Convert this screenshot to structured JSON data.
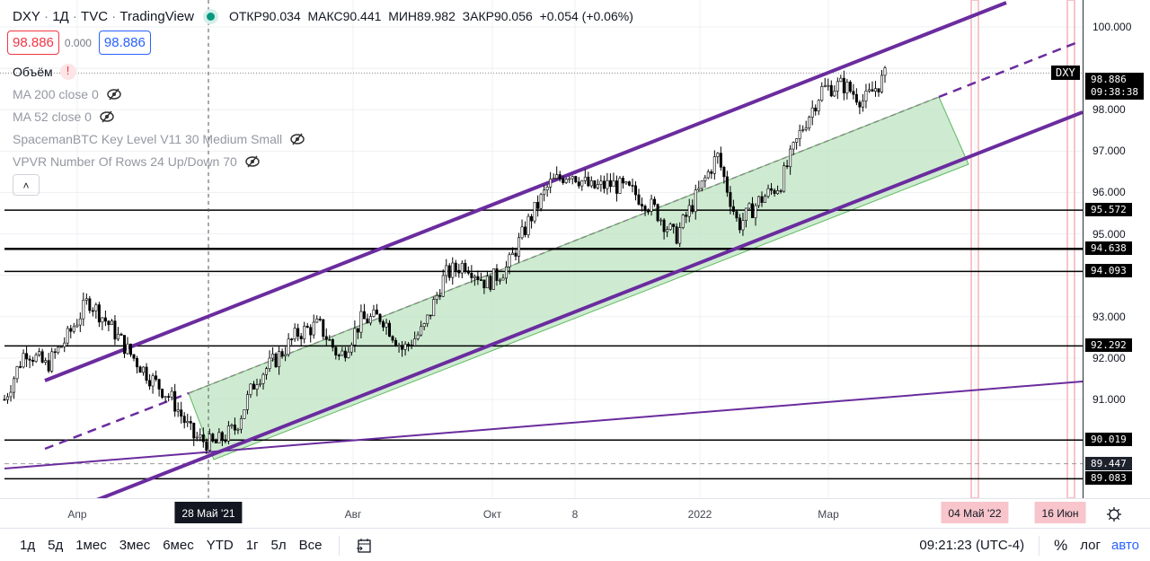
{
  "header": {
    "symbol": "DXY",
    "interval": "1Д",
    "exchange": "TVC",
    "source": "TradingView",
    "status_color": "#089981",
    "ohlc": {
      "open_label": "ОТКР",
      "open": "90.034",
      "high_label": "МАКС",
      "high": "90.441",
      "low_label": "МИН",
      "low": "89.982",
      "close_label": "ЗАКР",
      "close": "90.056",
      "change": "+0.054 (+0.06%)"
    },
    "bid": "98.886",
    "spread": "0.000",
    "ask": "98.886"
  },
  "indicators": [
    {
      "label": "Объём",
      "warning": "!"
    },
    {
      "label": "MA 200 close 0"
    },
    {
      "label": "MA 52 close 0"
    },
    {
      "label": "SpacemanBTC Key Level V11 30 Medium Small"
    },
    {
      "label": "VPVR Number Of Rows 24 Up/Down 70"
    }
  ],
  "price_axis": {
    "ticks": [
      "100.000",
      "98.000",
      "97.000",
      "96.000",
      "95.000",
      "93.000",
      "92.000",
      "91.000"
    ],
    "tick_values": [
      100,
      98,
      97,
      96,
      95,
      93,
      92,
      91
    ],
    "current": {
      "symbol": "DXY",
      "price": "98.886",
      "countdown": "09:38:38",
      "value": 98.886
    },
    "levels": [
      {
        "label": "95.572",
        "value": 95.572
      },
      {
        "label": "94.638",
        "value": 94.638
      },
      {
        "label": "94.093",
        "value": 94.093
      },
      {
        "label": "92.292",
        "value": 92.292
      },
      {
        "label": "90.019",
        "value": 90.019
      },
      {
        "label": "89.083",
        "value": 89.083
      }
    ],
    "dashed_level": {
      "label": "89.447",
      "value": 89.447
    }
  },
  "time_axis": {
    "labels": [
      "Апр",
      "Авг",
      "Окт",
      "8",
      "2022",
      "Мар"
    ],
    "crosshair": "28 Май '21",
    "markers": [
      "04 Май '22",
      "16 Июн"
    ]
  },
  "price_path": [
    91.0,
    92.2,
    91.8,
    92.5,
    93.4,
    92.8,
    92.1,
    91.5,
    91.0,
    90.1,
    89.9,
    90.3,
    91.5,
    92.0,
    92.6,
    92.8,
    92.0,
    92.9,
    93.0,
    92.2,
    92.7,
    94.0,
    94.3,
    93.8,
    94.2,
    95.3,
    96.2,
    96.5,
    96.1,
    96.2,
    96.0,
    95.6,
    94.9,
    95.9,
    96.9,
    95.2,
    95.8,
    96.2,
    97.5,
    98.5,
    98.6,
    98.2,
    98.8
  ],
  "colors": {
    "channel": "#6a2c9e",
    "fill": "#b9e3bf",
    "marker": "#f7c5cb",
    "down": "#000000"
  },
  "bottom": {
    "ranges": [
      "1д",
      "5д",
      "1мес",
      "3мес",
      "6мес",
      "YTD",
      "1г",
      "5л",
      "Все"
    ],
    "time": "09:21:23 (UTC-4)",
    "percent": "%",
    "log": "лог",
    "auto": "авто"
  }
}
